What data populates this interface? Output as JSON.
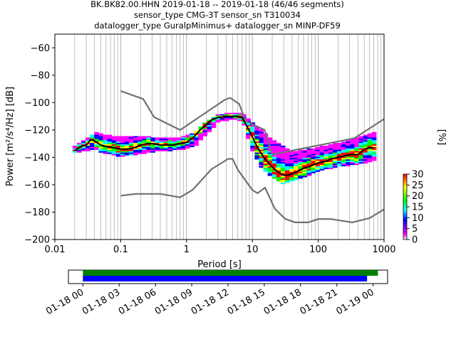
{
  "header": {
    "title_lines": [
      "BK.BK82.00.HHN   2019-01-18 -- 2019-01-18  (46/46 segments)",
      "sensor_type CMG-3T sensor_sn T310034",
      "datalogger_type GuralpMinimus+ datalogger_sn MINP-DF59"
    ]
  },
  "colors": {
    "noise_model": "#707070",
    "mode_line": "#000000",
    "coverage_top": "#008000",
    "coverage_bottom": "#0000ff",
    "colormap": [
      "#ffffff",
      "#ff00ff",
      "#0000ff",
      "#00ffff",
      "#00ff00",
      "#ffff00",
      "#ff0000"
    ]
  },
  "chart_data": [
    {
      "type": "heatmap",
      "subtype": "probabilistic power spectral density",
      "xlabel": "Period [s]",
      "ylabel": "Power [m²/s⁴/Hz] [dB]",
      "xscale": "log",
      "xlim": [
        0.01,
        1000
      ],
      "ylim": [
        -200,
        -50
      ],
      "xticks": [
        0.01,
        0.1,
        1,
        10,
        100,
        1000
      ],
      "xtick_labels": [
        "0.01",
        "0.1",
        "1",
        "10",
        "100",
        "1000"
      ],
      "yticks": [
        -200,
        -180,
        -160,
        -140,
        -120,
        -100,
        -80,
        -60
      ],
      "ytick_labels": [
        "−200",
        "−180",
        "−160",
        "−140",
        "−120",
        "−100",
        "−80",
        "−60"
      ],
      "grid": "vertical lines at log decades",
      "colorbar": {
        "label": "[%]",
        "range": [
          0,
          30
        ],
        "ticks": [
          0,
          5,
          10,
          15,
          20,
          25,
          30
        ]
      },
      "mode_curve": {
        "x": [
          0.02,
          0.025,
          0.03,
          0.035,
          0.04,
          0.05,
          0.06,
          0.08,
          0.1,
          0.13,
          0.16,
          0.2,
          0.25,
          0.3,
          0.4,
          0.5,
          0.6,
          0.8,
          1.0,
          1.3,
          1.6,
          2.0,
          2.5,
          3.0,
          4.0,
          5.0,
          6.0,
          7.0,
          8.0,
          10,
          12,
          14,
          16,
          20,
          25,
          30,
          35,
          40,
          50,
          60,
          80,
          100,
          130,
          160,
          200,
          300,
          400,
          500,
          600,
          700
        ],
        "y": [
          -135,
          -132,
          -131,
          -127,
          -128,
          -131,
          -132,
          -133,
          -134,
          -134,
          -133,
          -131,
          -130,
          -130,
          -131,
          -131,
          -131,
          -130,
          -129,
          -125,
          -120,
          -116,
          -112,
          -111,
          -110,
          -110,
          -110,
          -111,
          -116,
          -125,
          -133,
          -138,
          -142,
          -147,
          -151,
          -153,
          -153,
          -152,
          -150,
          -148,
          -146,
          -144,
          -143,
          -141,
          -140,
          -138,
          -138,
          -134,
          -133,
          -133
        ]
      },
      "noise_model_high": {
        "x": [
          0.1,
          0.22,
          0.32,
          0.8,
          3.8,
          4.6,
          6.3,
          7.9,
          15.4,
          20,
          354.8,
          1000
        ],
        "y": [
          -91.5,
          -97.4,
          -110.5,
          -120,
          -98,
          -96.5,
          -101,
          -113.5,
          -120,
          -138,
          -126,
          -112
        ]
      },
      "noise_model_low": {
        "x": [
          0.1,
          0.17,
          0.4,
          0.8,
          1.24,
          2.4,
          4.3,
          5.0,
          6.0,
          10,
          12,
          15.6,
          21.9,
          31.6,
          45,
          70,
          101,
          154,
          328,
          600,
          1000
        ],
        "y": [
          -168,
          -166.7,
          -166.7,
          -169.2,
          -163.7,
          -148.6,
          -141.1,
          -141.1,
          -149,
          -163.8,
          -166.2,
          -162.1,
          -177.5,
          -185,
          -187.5,
          -187.5,
          -185,
          -185,
          -187.5,
          -184.4,
          -178
        ]
      },
      "spread": {
        "x": [
          0.02,
          0.03,
          0.04,
          0.06,
          0.1,
          0.2,
          0.4,
          0.8,
          1.3,
          2.0,
          3.0,
          5.0,
          7.0,
          10,
          14,
          20,
          30,
          40,
          60,
          100,
          200,
          400,
          700
        ],
        "upper": [
          -132,
          -127,
          -122,
          -124,
          -125,
          -125,
          -126,
          -126,
          -122,
          -114,
          -109,
          -108,
          -108,
          -115,
          -121,
          -127,
          -133,
          -136,
          -135,
          -133,
          -130,
          -126,
          -122
        ],
        "lower": [
          -136,
          -135,
          -134,
          -137,
          -139,
          -137,
          -135,
          -134,
          -132,
          -123,
          -114,
          -112,
          -113,
          -135,
          -148,
          -154,
          -159,
          -157,
          -154,
          -150,
          -146,
          -145,
          -142
        ]
      }
    },
    {
      "type": "bar",
      "subtype": "data coverage timeline",
      "x_tick_labels": [
        "01-18 00",
        "01-18 03",
        "01-18 06",
        "01-18 09",
        "01-18 12",
        "01-18 15",
        "01-18 18",
        "01-18 21",
        "01-19 00"
      ],
      "x_hours": [
        0,
        3,
        6,
        9,
        12,
        15,
        18,
        21,
        24
      ],
      "xlim_hours": [
        -1.2,
        25.2
      ],
      "bars": [
        {
          "start_hours": 0,
          "end_hours": 24.4,
          "color": "#008000"
        },
        {
          "start_hours": 0,
          "end_hours": 23.5,
          "color": "#0000ff"
        }
      ]
    }
  ]
}
